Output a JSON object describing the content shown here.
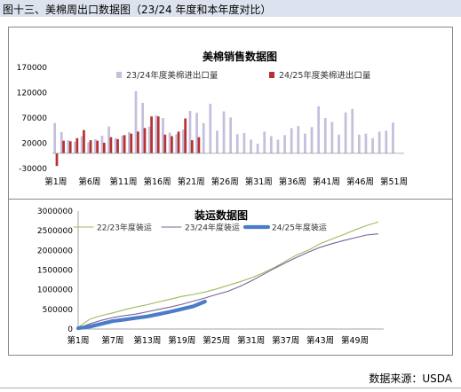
{
  "figure_title": "图十三、美棉周出口数据图（23/24 年度和本年度对比）",
  "source_label": "数据来源：USDA",
  "chart_data": [
    {
      "type": "bar",
      "title": "美棉销售数据图",
      "xlabel": "",
      "ylabel": "",
      "ylim": [
        -30000,
        170000
      ],
      "yticks": [
        -30000,
        20000,
        70000,
        120000,
        170000
      ],
      "x_tick_labels": [
        "第1周",
        "第6周",
        "第11周",
        "第16周",
        "第21周",
        "第26周",
        "第31周",
        "第36周",
        "第41周",
        "第46周",
        "第51周"
      ],
      "grid": false,
      "legend_position": "top",
      "series": [
        {
          "name": "23/24年度美棉进出口量",
          "color": "#c4bfdc",
          "values": [
            60000,
            42000,
            26000,
            23000,
            34000,
            22000,
            28000,
            35000,
            53000,
            30000,
            35000,
            42000,
            123000,
            100000,
            53000,
            75000,
            70000,
            41000,
            38000,
            47000,
            84000,
            80000,
            60000,
            98000,
            45000,
            83000,
            71000,
            38000,
            40000,
            27000,
            19000,
            43000,
            34000,
            27000,
            36000,
            50000,
            54000,
            39000,
            52000,
            93000,
            70000,
            62000,
            37000,
            81000,
            88000,
            37000,
            39000,
            30000,
            43000,
            45000,
            61000
          ]
        },
        {
          "name": "24/25年度美棉进出口量",
          "color": "#b83232",
          "values": [
            -25000,
            25000,
            24000,
            30000,
            46000,
            26000,
            25000,
            21000,
            32000,
            28000,
            36000,
            39000,
            43000,
            50000,
            73000,
            73000,
            37000,
            34000,
            43000,
            69000,
            26000,
            32000
          ]
        }
      ]
    },
    {
      "type": "line",
      "title": "装运数据图",
      "xlabel": "",
      "ylabel": "",
      "ylim": [
        0,
        3000000
      ],
      "yticks": [
        0,
        500000,
        1000000,
        1500000,
        2000000,
        2500000,
        3000000
      ],
      "x_tick_labels": [
        "第1周",
        "第7周",
        "第13周",
        "第19周",
        "第25周",
        "第31周",
        "第37周",
        "第43周",
        "第49周"
      ],
      "grid": false,
      "legend_position": "top",
      "series": [
        {
          "name": "22/23年度装运",
          "color": "#9bbb59",
          "x": [
            1,
            3,
            5,
            7,
            9,
            11,
            13,
            15,
            17,
            19,
            21,
            23,
            25,
            27,
            29,
            31,
            33,
            35,
            37,
            39,
            41,
            43,
            45,
            47,
            49,
            51,
            53
          ],
          "values": [
            40000,
            250000,
            340000,
            410000,
            490000,
            560000,
            620000,
            690000,
            760000,
            830000,
            880000,
            940000,
            1020000,
            1110000,
            1200000,
            1300000,
            1420000,
            1560000,
            1730000,
            1890000,
            2010000,
            2170000,
            2290000,
            2400000,
            2520000,
            2630000,
            2720000
          ]
        },
        {
          "name": "23/24年度装运",
          "color": "#7c5f9e",
          "x": [
            1,
            3,
            5,
            7,
            9,
            11,
            13,
            15,
            17,
            19,
            21,
            23,
            25,
            27,
            29,
            31,
            33,
            35,
            37,
            39,
            41,
            43,
            45,
            47,
            49,
            51,
            53
          ],
          "values": [
            20000,
            130000,
            220000,
            290000,
            340000,
            380000,
            440000,
            500000,
            560000,
            630000,
            710000,
            790000,
            880000,
            960000,
            1080000,
            1220000,
            1380000,
            1540000,
            1690000,
            1830000,
            1960000,
            2080000,
            2170000,
            2250000,
            2320000,
            2390000,
            2420000
          ]
        },
        {
          "name": "24/25年度装运",
          "color": "#4a7cc9",
          "x": [
            1,
            3,
            5,
            7,
            9,
            11,
            13,
            15,
            17,
            19,
            21,
            23
          ],
          "values": [
            20000,
            60000,
            130000,
            200000,
            240000,
            280000,
            320000,
            380000,
            440000,
            510000,
            580000,
            700000
          ]
        }
      ]
    }
  ]
}
